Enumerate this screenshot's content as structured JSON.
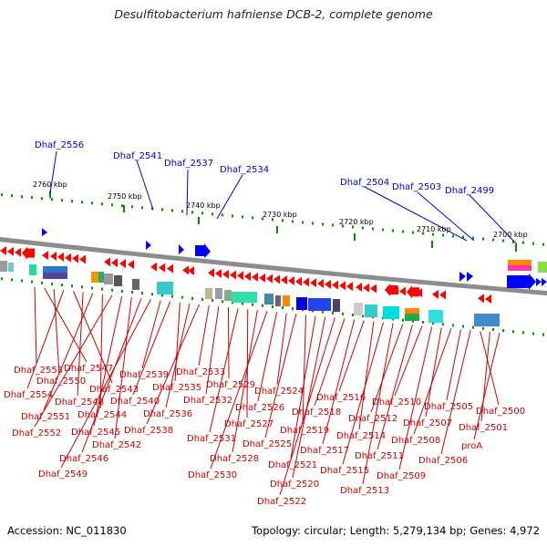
{
  "title": "Desulfitobacterium hafniense DCB-2, complete genome",
  "footer": {
    "accession": "Accession: NC_011830",
    "summary": "Topology: circular; Length: 5,279,134 bp; Genes: 4,972"
  },
  "colors": {
    "backbone": "#8c8c8c",
    "gene_forward": "#0000ff",
    "gene_reverse": "#ff0000",
    "ruler": "#009000",
    "top_label": "#0000cc",
    "bottom_label": "#cc0000"
  },
  "ruler_ticks": [
    "2760 kbp",
    "2750 kbp",
    "2740 kbp",
    "2730 kbp",
    "2720 kbp",
    "2710 kbp",
    "2700 kbp"
  ],
  "top_labels": [
    "Dhaf_2556",
    "Dhaf_2541",
    "Dhaf_2537",
    "Dhaf_2534",
    "Dhaf_2504",
    "Dhaf_2503",
    "Dhaf_2499"
  ],
  "bottom_labels": [
    "Dhaf_2553",
    "Dhaf_2547",
    "Dhaf_2550",
    "Dhaf_2554",
    "Dhaf_2543",
    "Dhaf_2548",
    "Dhaf_2551",
    "Dhaf_2544",
    "Dhaf_2552",
    "Dhaf_2545",
    "Dhaf_2542",
    "Dhaf_2546",
    "Dhaf_2549",
    "Dhaf_2539",
    "Dhaf_2540",
    "Dhaf_2535",
    "Dhaf_2536",
    "Dhaf_2538",
    "Dhaf_2533",
    "Dhaf_2532",
    "Dhaf_2529",
    "Dhaf_2531",
    "Dhaf_2527",
    "Dhaf_2528",
    "Dhaf_2530",
    "Dhaf_2526",
    "Dhaf_2524",
    "Dhaf_2525",
    "Dhaf_2519",
    "Dhaf_2521",
    "Dhaf_2520",
    "Dhaf_2522",
    "Dhaf_2518",
    "Dhaf_2517",
    "Dhaf_2516",
    "Dhaf_2514",
    "Dhaf_2515",
    "Dhaf_2513",
    "Dhaf_2512",
    "Dhaf_2511",
    "Dhaf_2510",
    "Dhaf_2509",
    "Dhaf_2507",
    "Dhaf_2508",
    "Dhaf_2505",
    "Dhaf_2506",
    "Dhaf_2500",
    "Dhaf_2501",
    "proA"
  ]
}
